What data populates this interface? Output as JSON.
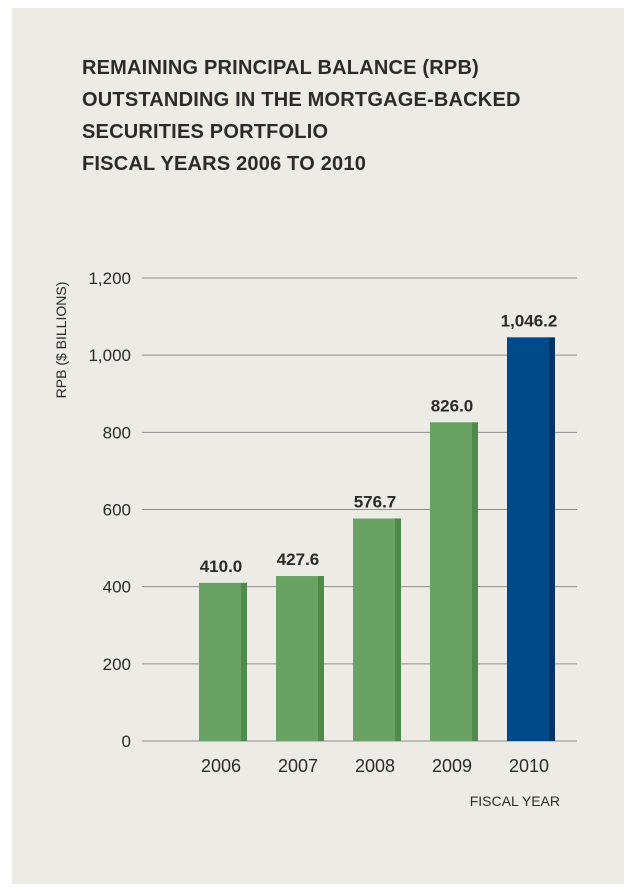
{
  "chart_data": {
    "type": "bar",
    "title_lines": [
      "REMAINING PRINCIPAL BALANCE (RPB)",
      "OUTSTANDING IN THE MORTGAGE-BACKED",
      "SECURITIES PORTFOLIO",
      "FISCAL YEARS 2006 TO 2010"
    ],
    "xlabel": "FISCAL YEAR",
    "ylabel": "RPB ($ BILLIONS)",
    "categories": [
      "2006",
      "2007",
      "2008",
      "2009",
      "2010"
    ],
    "values": [
      410.0,
      427.6,
      576.7,
      826.0,
      1046.2
    ],
    "value_labels": [
      "410.0",
      "427.6",
      "576.7",
      "826.0",
      "1,046.2"
    ],
    "ylim": [
      0,
      1200
    ],
    "yticks": [
      0,
      200,
      400,
      600,
      800,
      1000,
      1200
    ],
    "ytick_labels": [
      "0",
      "200",
      "400",
      "600",
      "800",
      "1,000",
      "1,200"
    ],
    "grid": true,
    "bar_colors": [
      "#6aa266",
      "#6aa266",
      "#6aa266",
      "#6aa266",
      "#004a8a"
    ],
    "bar_side_colors": [
      "#4f8a4c",
      "#4f8a4c",
      "#4f8a4c",
      "#4f8a4c",
      "#003366"
    ]
  }
}
